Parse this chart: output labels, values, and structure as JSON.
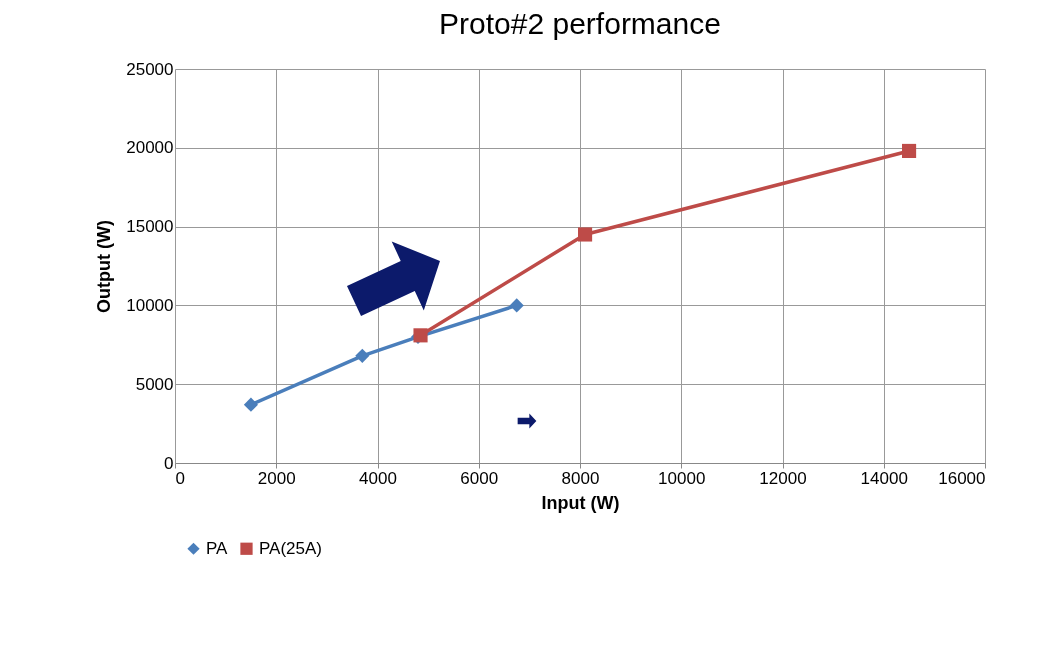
{
  "chart_data": {
    "type": "line",
    "title": "Proto#2  performance",
    "xlabel": "Input (W)",
    "ylabel": "Output (W)",
    "xlim": [
      0,
      16000
    ],
    "xticks": [
      0,
      2000,
      4000,
      6000,
      8000,
      10000,
      12000,
      14000,
      16000
    ],
    "ylim": [
      0,
      25000
    ],
    "yticks": [
      0,
      5000,
      10000,
      15000,
      20000,
      25000
    ],
    "grid": true,
    "legend": "bottom",
    "line_style": "solid",
    "series": [
      {
        "name": "PA",
        "color": "#4a7ebb",
        "marker": "diamond",
        "x": [
          1500,
          3700,
          4800,
          6750
        ],
        "values": [
          3700,
          6800,
          8000,
          10000
        ]
      },
      {
        "name": "PA(25A)",
        "color": "#be4b48",
        "marker": "square",
        "x": [
          4850,
          8100,
          14500
        ],
        "values": [
          8100,
          14500,
          19800
        ]
      }
    ]
  }
}
